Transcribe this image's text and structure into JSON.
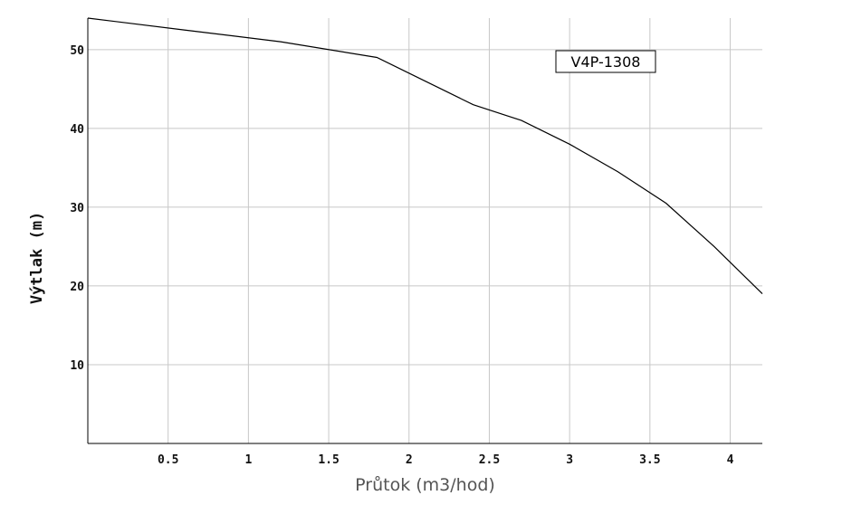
{
  "chart_data": {
    "type": "line",
    "xlabel": "Průtok (m3/hod)",
    "ylabel": "Výtlak (m)",
    "xlim": [
      0,
      4.2
    ],
    "ylim": [
      0,
      54
    ],
    "xticks": [
      0.5,
      1,
      1.5,
      2,
      2.5,
      3,
      3.5,
      4
    ],
    "xtick_labels": [
      "0.5",
      "1",
      "1.5",
      "2",
      "2.5",
      "3",
      "3.5",
      "4"
    ],
    "yticks": [
      10,
      20,
      30,
      40,
      50
    ],
    "ytick_labels": [
      "10",
      "20",
      "30",
      "40",
      "50"
    ],
    "grid": true,
    "legend_position": "top-right",
    "series": [
      {
        "name": "V4P-1308",
        "color": "#000000",
        "x": [
          0,
          0.6,
          1.2,
          1.8,
          2.1,
          2.4,
          2.7,
          3.0,
          3.3,
          3.6,
          3.9,
          4.2
        ],
        "y": [
          54,
          52.5,
          51,
          49,
          46,
          43,
          41,
          38,
          34.5,
          30.5,
          25,
          19
        ]
      }
    ]
  },
  "colors": {
    "grid": "#c8c8c8",
    "axis": "#000000",
    "background": "#ffffff"
  }
}
